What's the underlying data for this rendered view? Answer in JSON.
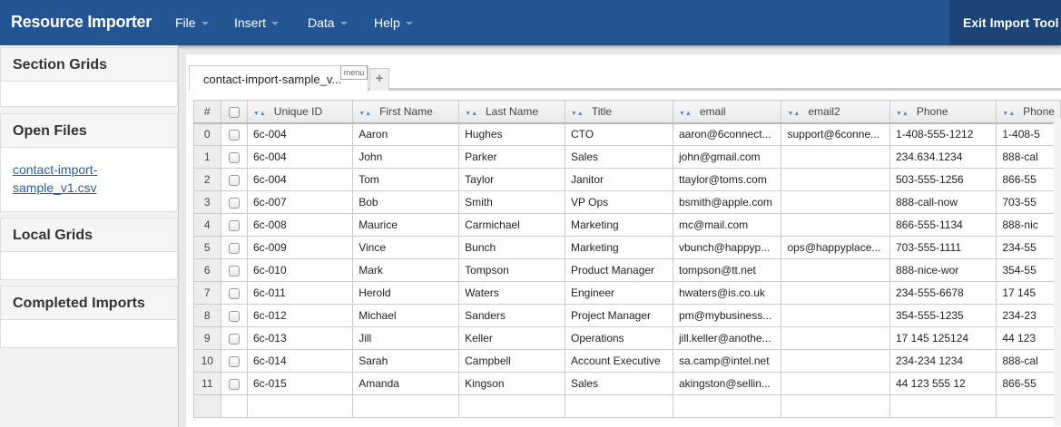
{
  "app": {
    "title": "Resource Importer",
    "menus": [
      "File",
      "Insert",
      "Data",
      "Help"
    ],
    "exit_label": "Exit Import Tool",
    "brand_color": "#245593"
  },
  "sidebar": {
    "sections": [
      {
        "title": "Section Grids",
        "items": []
      },
      {
        "title": "Open Files",
        "items": [
          "contact-import-sample_v1.csv"
        ]
      },
      {
        "title": "Local Grids",
        "items": []
      },
      {
        "title": "Completed Imports",
        "items": []
      }
    ]
  },
  "tabs": {
    "active": "contact-import-sample_v...",
    "menu_label": "menu",
    "add_label": "+"
  },
  "grid": {
    "columns": [
      "#",
      "",
      "Unique ID",
      "First Name",
      "Last Name",
      "Title",
      "email",
      "email2",
      "Phone",
      "Phone"
    ],
    "rows": [
      [
        "0",
        "6c-004",
        "Aaron",
        "Hughes",
        "CTO",
        "aaron@6connect...",
        "support@6conne...",
        "1-408-555-1212",
        "1-408-5"
      ],
      [
        "1",
        "6c-004",
        "John",
        "Parker",
        "Sales",
        "john@gmail.com",
        "",
        "234.634.1234",
        "888-cal"
      ],
      [
        "2",
        "6c-004",
        "Tom",
        "Taylor",
        "Janitor",
        "ttaylor@toms.com",
        "",
        "503-555-1256",
        "866-55"
      ],
      [
        "3",
        "6c-007",
        "Bob",
        "Smith",
        "VP Ops",
        "bsmith@apple.com",
        "",
        "888-call-now",
        "703-55"
      ],
      [
        "4",
        "6c-008",
        "Maurice",
        "Carmichael",
        "Marketing",
        "mc@mail.com",
        "",
        "866-555-1134",
        "888-nic"
      ],
      [
        "5",
        "6c-009",
        "Vince",
        "Bunch",
        "Marketing",
        "vbunch@happyp...",
        "ops@happyplace...",
        "703-555-1111",
        "234-55"
      ],
      [
        "6",
        "6c-010",
        "Mark",
        "Tompson",
        "Product Manager",
        "tompson@tt.net",
        "",
        "888-nice-wor",
        "354-55"
      ],
      [
        "7",
        "6c-011",
        "Herold",
        "Waters",
        "Engineer",
        "hwaters@is.co.uk",
        "",
        "234-555-6678",
        "17 145"
      ],
      [
        "8",
        "6c-012",
        "Michael",
        "Sanders",
        "Project Manager",
        "pm@mybusiness...",
        "",
        "354-555-1235",
        "234-23"
      ],
      [
        "9",
        "6c-013",
        "Jill",
        "Keller",
        "Operations",
        "jill.keller@anothe...",
        "",
        "17 145 125124",
        "44 123"
      ],
      [
        "10",
        "6c-014",
        "Sarah",
        "Campbell",
        "Account Executive",
        "sa.camp@intel.net",
        "",
        "234-234 1234",
        "888-cal"
      ],
      [
        "11",
        "6c-015",
        "Amanda",
        "Kingson",
        "Sales",
        "akingston@sellin...",
        "",
        "44 123 555 12",
        "866-55"
      ]
    ]
  }
}
